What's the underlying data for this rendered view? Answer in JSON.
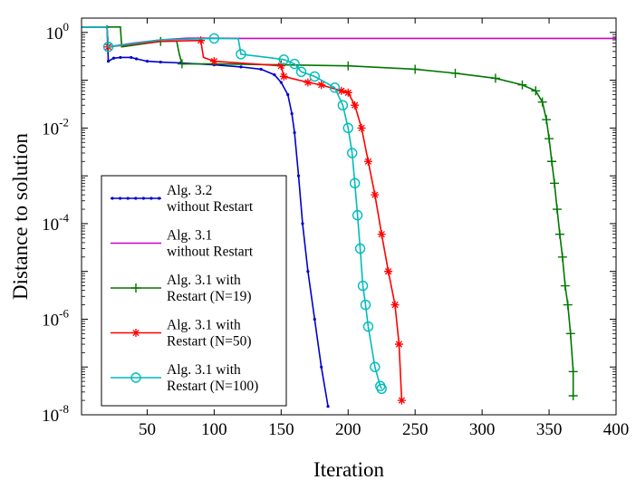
{
  "chart_data": {
    "type": "line",
    "title": "",
    "xlabel": "Iteration",
    "ylabel": "Distance to solution",
    "xlim": [
      1,
      400
    ],
    "ylim_log10": [
      -8,
      0.3
    ],
    "y_scale": "log",
    "grid": false,
    "legend_position": "lower-left",
    "x_ticks": [
      {
        "value": 50,
        "label": "50"
      },
      {
        "value": 100,
        "label": "100"
      },
      {
        "value": 150,
        "label": "150"
      },
      {
        "value": 200,
        "label": "200"
      },
      {
        "value": 250,
        "label": "250"
      },
      {
        "value": 300,
        "label": "300"
      },
      {
        "value": 350,
        "label": "350"
      },
      {
        "value": 400,
        "label": "400"
      }
    ],
    "y_ticks": [
      {
        "exp": 0,
        "base": "10",
        "power": "0"
      },
      {
        "exp": -2,
        "base": "10",
        "power": "-2"
      },
      {
        "exp": -4,
        "base": "10",
        "power": "-4"
      },
      {
        "exp": -6,
        "base": "10",
        "power": "-6"
      },
      {
        "exp": -8,
        "base": "10",
        "power": "-8"
      }
    ],
    "series": [
      {
        "name_lines": [
          "Alg. 3.2",
          "without Restart"
        ],
        "color": "#0000cc",
        "marker": "dot",
        "marker_every": 1,
        "points": [
          [
            1,
            1.3
          ],
          [
            20,
            1.3
          ],
          [
            21,
            0.25
          ],
          [
            25,
            0.29
          ],
          [
            30,
            0.3
          ],
          [
            38,
            0.3
          ],
          [
            42,
            0.28
          ],
          [
            50,
            0.25
          ],
          [
            60,
            0.24
          ],
          [
            75,
            0.23
          ],
          [
            100,
            0.21
          ],
          [
            120,
            0.19
          ],
          [
            135,
            0.17
          ],
          [
            145,
            0.13
          ],
          [
            150,
            0.09
          ],
          [
            155,
            0.05
          ],
          [
            158,
            0.02
          ],
          [
            160,
            0.008
          ],
          [
            163,
            0.001
          ],
          [
            166,
            0.0001
          ],
          [
            170,
            1e-05
          ],
          [
            175,
            1e-06
          ],
          [
            180,
            1e-07
          ],
          [
            185,
            1.5e-08
          ]
        ]
      },
      {
        "name_lines": [
          "Alg. 3.1",
          "without Restart"
        ],
        "color": "#cc00cc",
        "marker": "none",
        "marker_every": 1,
        "points": [
          [
            1,
            1.3
          ],
          [
            20,
            1.3
          ],
          [
            21,
            0.5
          ],
          [
            40,
            0.6
          ],
          [
            60,
            0.7
          ],
          [
            80,
            0.76
          ],
          [
            100,
            0.76
          ],
          [
            120,
            0.75
          ],
          [
            124,
            0.75
          ],
          [
            400,
            0.75
          ]
        ]
      },
      {
        "name_lines": [
          "Alg. 3.1 with",
          "Restart (N=19)"
        ],
        "color": "#007700",
        "marker": "plus",
        "marker_every": 3,
        "points": [
          [
            1,
            1.3
          ],
          [
            30,
            1.3
          ],
          [
            31,
            0.5
          ],
          [
            60,
            0.65
          ],
          [
            72,
            0.66
          ],
          [
            74,
            0.35
          ],
          [
            76,
            0.22
          ],
          [
            100,
            0.22
          ],
          [
            150,
            0.21
          ],
          [
            200,
            0.2
          ],
          [
            250,
            0.17
          ],
          [
            280,
            0.14
          ],
          [
            310,
            0.11
          ],
          [
            330,
            0.08
          ],
          [
            340,
            0.06
          ],
          [
            345,
            0.035
          ],
          [
            348,
            0.015
          ],
          [
            350,
            0.006
          ],
          [
            352,
            0.002
          ],
          [
            354,
            0.0007
          ],
          [
            356,
            0.0002
          ],
          [
            358,
            6e-05
          ],
          [
            360,
            2e-05
          ],
          [
            362,
            5e-06
          ],
          [
            364,
            2e-06
          ],
          [
            366,
            5e-07
          ],
          [
            368,
            8e-08
          ],
          [
            368,
            2.5e-08
          ]
        ]
      },
      {
        "name_lines": [
          "Alg. 3.1 with",
          "Restart (N=50)"
        ],
        "color": "#ff0000",
        "marker": "star",
        "marker_every": 2,
        "points": [
          [
            1,
            1.3
          ],
          [
            20,
            1.3
          ],
          [
            21,
            0.5
          ],
          [
            60,
            0.65
          ],
          [
            90,
            0.68
          ],
          [
            92,
            0.3
          ],
          [
            100,
            0.25
          ],
          [
            150,
            0.2
          ],
          [
            152,
            0.12
          ],
          [
            170,
            0.09
          ],
          [
            180,
            0.08
          ],
          [
            195,
            0.06
          ],
          [
            200,
            0.055
          ],
          [
            205,
            0.03
          ],
          [
            210,
            0.01
          ],
          [
            215,
            0.002
          ],
          [
            220,
            0.0004
          ],
          [
            225,
            6e-05
          ],
          [
            230,
            1e-05
          ],
          [
            235,
            2e-06
          ],
          [
            238,
            3e-07
          ],
          [
            240,
            2e-08
          ]
        ]
      },
      {
        "name_lines": [
          "Alg. 3.1 with",
          "Restart (N=100)"
        ],
        "color": "#00bbbb",
        "marker": "circle",
        "marker_every": 2,
        "points": [
          [
            1,
            1.3
          ],
          [
            20,
            1.3
          ],
          [
            21,
            0.5
          ],
          [
            60,
            0.7
          ],
          [
            100,
            0.75
          ],
          [
            118,
            0.74
          ],
          [
            120,
            0.35
          ],
          [
            140,
            0.3
          ],
          [
            152,
            0.27
          ],
          [
            160,
            0.22
          ],
          [
            165,
            0.15
          ],
          [
            175,
            0.12
          ],
          [
            190,
            0.07
          ],
          [
            196,
            0.03
          ],
          [
            200,
            0.01
          ],
          [
            203,
            0.003
          ],
          [
            205,
            0.0007
          ],
          [
            207,
            0.00015
          ],
          [
            209,
            3e-05
          ],
          [
            211,
            5e-06
          ],
          [
            213,
            2e-06
          ],
          [
            215,
            7e-07
          ],
          [
            220,
            1e-07
          ],
          [
            224,
            4e-08
          ],
          [
            225,
            3.5e-08
          ]
        ]
      }
    ]
  }
}
